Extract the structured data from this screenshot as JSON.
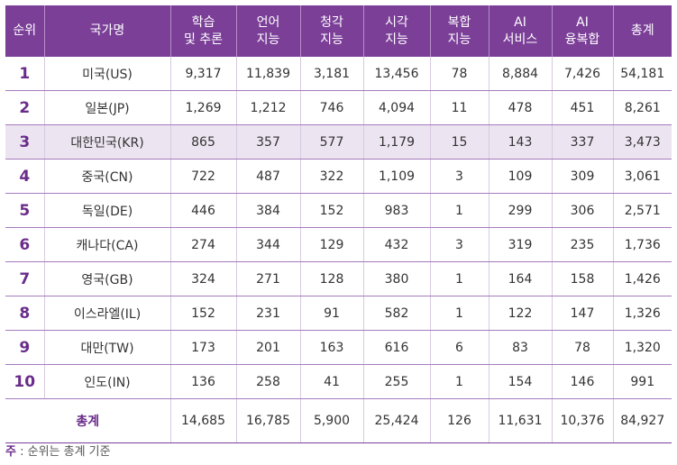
{
  "headers": [
    "순위",
    "국가명",
    "학습\n및 추론",
    "언어\n지능",
    "청각\n지능",
    "시각\n지능",
    "복합\n지능",
    "AI\n서비스",
    "AI\n융복합",
    "총계"
  ],
  "rows": [
    [
      "1",
      "미국(US)",
      "9,317",
      "11,839",
      "3,181",
      "13,456",
      "78",
      "8,884",
      "7,426",
      "54,181"
    ],
    [
      "2",
      "일본(JP)",
      "1,269",
      "1,212",
      "746",
      "4,094",
      "11",
      "478",
      "451",
      "8,261"
    ],
    [
      "3",
      "대한민국(KR)",
      "865",
      "357",
      "577",
      "1,179",
      "15",
      "143",
      "337",
      "3,473"
    ],
    [
      "4",
      "중국(CN)",
      "722",
      "487",
      "322",
      "1,109",
      "3",
      "109",
      "309",
      "3,061"
    ],
    [
      "5",
      "독일(DE)",
      "446",
      "384",
      "152",
      "983",
      "1",
      "299",
      "306",
      "2,571"
    ],
    [
      "6",
      "캐나다(CA)",
      "274",
      "344",
      "129",
      "432",
      "3",
      "319",
      "235",
      "1,736"
    ],
    [
      "7",
      "영국(GB)",
      "324",
      "271",
      "128",
      "380",
      "1",
      "164",
      "158",
      "1,426"
    ],
    [
      "8",
      "이스라엘(IL)",
      "152",
      "231",
      "91",
      "582",
      "1",
      "122",
      "147",
      "1,326"
    ],
    [
      "9",
      "대만(TW)",
      "173",
      "201",
      "163",
      "616",
      "6",
      "83",
      "78",
      "1,320"
    ],
    [
      "10",
      "인도(IN)",
      "136",
      "258",
      "41",
      "255",
      "1",
      "154",
      "146",
      "991"
    ]
  ],
  "highlight_row": 2,
  "total": {
    "label": "총계",
    "values": [
      "14,685",
      "16,785",
      "5,900",
      "25,424",
      "126",
      "11,631",
      "10,376",
      "84,927"
    ]
  },
  "note": {
    "prefix": "주",
    "text": " : 순위는 총계 기준"
  }
}
